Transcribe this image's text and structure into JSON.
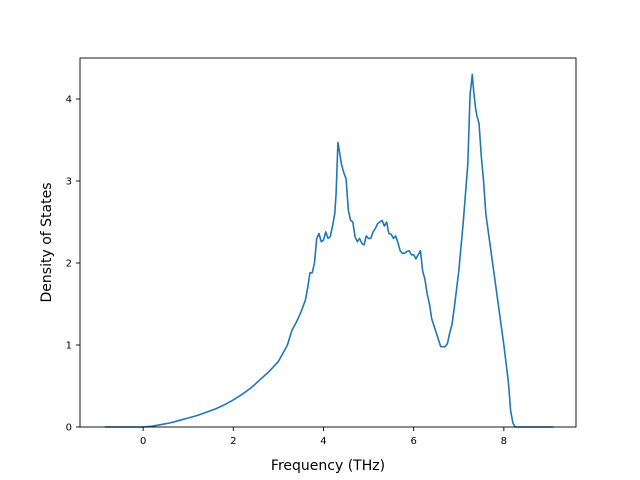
{
  "chart_data": {
    "type": "line",
    "title": "",
    "xlabel": "Frequency (THz)",
    "ylabel": "Density of States",
    "xlim": [
      -1.4,
      9.6
    ],
    "ylim": [
      0,
      4.5
    ],
    "xticks": [
      0,
      2,
      4,
      6,
      8
    ],
    "yticks": [
      0,
      1,
      2,
      3,
      4
    ],
    "grid": false,
    "line_color": "#1f77b4",
    "series": [
      {
        "x": [
          -0.85,
          -0.5,
          0.0,
          0.2,
          0.4,
          0.6,
          0.8,
          1.0,
          1.2,
          1.4,
          1.6,
          1.8,
          2.0,
          2.2,
          2.4,
          2.6,
          2.8,
          3.0,
          3.1,
          3.2,
          3.3,
          3.4,
          3.5,
          3.6,
          3.65,
          3.7,
          3.75,
          3.8,
          3.85,
          3.9,
          3.95,
          4.0,
          4.05,
          4.1,
          4.15,
          4.2,
          4.25,
          4.28,
          4.32,
          4.4,
          4.45,
          4.5,
          4.55,
          4.6,
          4.65,
          4.7,
          4.75,
          4.8,
          4.85,
          4.9,
          4.95,
          5.0,
          5.05,
          5.1,
          5.15,
          5.2,
          5.25,
          5.3,
          5.35,
          5.4,
          5.45,
          5.5,
          5.55,
          5.6,
          5.65,
          5.7,
          5.75,
          5.8,
          5.85,
          5.9,
          5.95,
          6.0,
          6.05,
          6.1,
          6.15,
          6.2,
          6.25,
          6.3,
          6.35,
          6.4,
          6.5,
          6.6,
          6.7,
          6.75,
          6.8,
          6.85,
          6.9,
          7.0,
          7.1,
          7.2,
          7.25,
          7.3,
          7.33,
          7.37,
          7.4,
          7.45,
          7.5,
          7.55,
          7.6,
          7.7,
          7.8,
          7.9,
          8.0,
          8.1,
          8.15,
          8.2,
          8.25,
          8.3,
          8.5,
          9.1
        ],
        "y": [
          0.0,
          0.0,
          0.0,
          0.01,
          0.03,
          0.05,
          0.08,
          0.11,
          0.14,
          0.18,
          0.22,
          0.27,
          0.33,
          0.4,
          0.48,
          0.58,
          0.68,
          0.8,
          0.9,
          1.0,
          1.18,
          1.28,
          1.4,
          1.55,
          1.7,
          1.88,
          1.88,
          2.0,
          2.3,
          2.36,
          2.26,
          2.28,
          2.38,
          2.3,
          2.32,
          2.45,
          2.6,
          2.85,
          3.47,
          3.2,
          3.1,
          3.03,
          2.65,
          2.52,
          2.5,
          2.32,
          2.26,
          2.3,
          2.24,
          2.22,
          2.33,
          2.3,
          2.3,
          2.38,
          2.42,
          2.48,
          2.5,
          2.52,
          2.45,
          2.5,
          2.36,
          2.35,
          2.3,
          2.33,
          2.25,
          2.15,
          2.12,
          2.12,
          2.14,
          2.15,
          2.1,
          2.1,
          2.05,
          2.1,
          2.15,
          1.9,
          1.8,
          1.62,
          1.5,
          1.32,
          1.15,
          0.98,
          0.98,
          1.02,
          1.15,
          1.25,
          1.45,
          1.9,
          2.5,
          3.2,
          4.05,
          4.3,
          4.1,
          3.9,
          3.8,
          3.7,
          3.3,
          3.0,
          2.6,
          2.2,
          1.8,
          1.4,
          1.0,
          0.55,
          0.2,
          0.05,
          0.0,
          0.0,
          0.0,
          0.0
        ]
      }
    ]
  }
}
